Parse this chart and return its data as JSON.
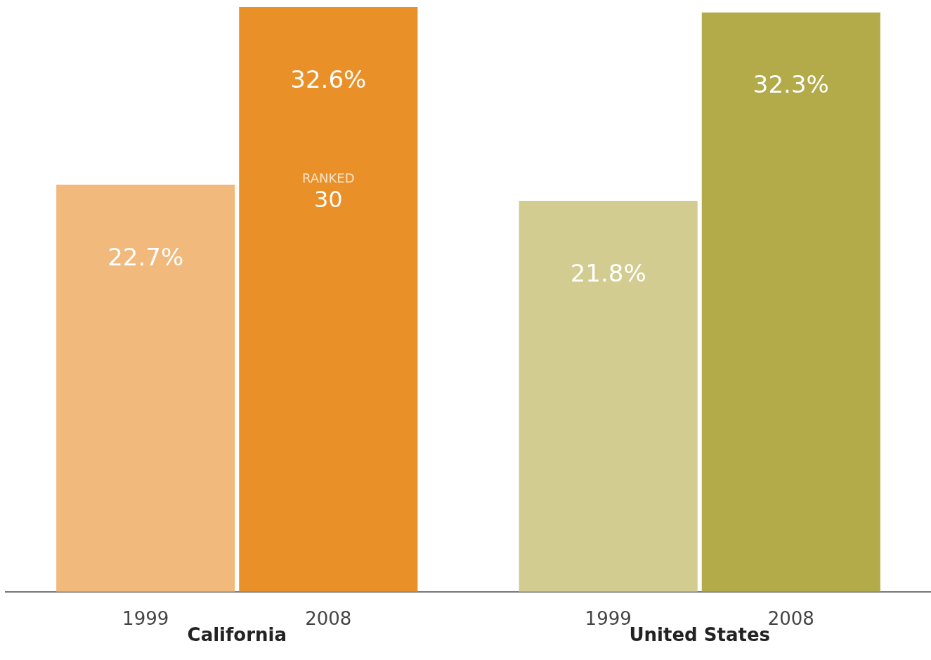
{
  "chart_data": {
    "type": "bar",
    "categories": [
      "California",
      "United States"
    ],
    "series": [
      {
        "name": "1999",
        "colors": [
          "#f2b97c",
          "#d2cc90"
        ],
        "values": [
          22.7,
          21.8
        ],
        "value_labels": [
          "22.7%",
          "21.8%"
        ]
      },
      {
        "name": "2008",
        "colors": [
          "#ea9029",
          "#b3aa4a"
        ],
        "values": [
          32.6,
          32.3
        ],
        "value_labels": [
          "32.6%",
          "32.3%"
        ]
      }
    ],
    "annotations": [
      {
        "text": "RANKED\n30",
        "x": "California"
      }
    ],
    "legend": false,
    "grid": false
  }
}
